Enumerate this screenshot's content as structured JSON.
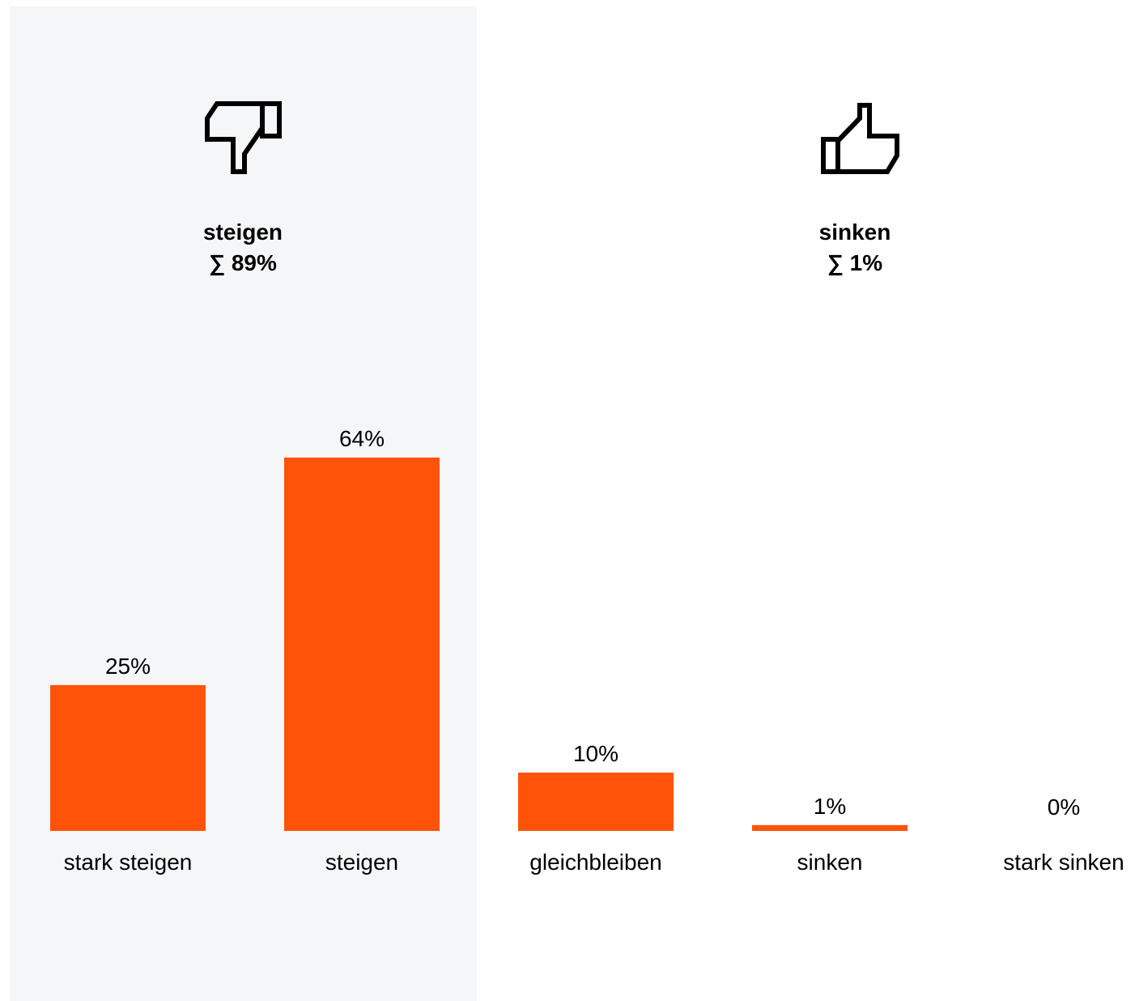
{
  "chart_data": {
    "type": "bar",
    "categories": [
      "stark steigen",
      "steigen",
      "gleichbleiben",
      "sinken",
      "stark sinken"
    ],
    "values": [
      25,
      64,
      10,
      1,
      0
    ],
    "value_labels": [
      "25%",
      "64%",
      "10%",
      "1%",
      "0%"
    ],
    "ylim": [
      0,
      64
    ],
    "unit": "%",
    "bar_color": "#FF5309",
    "highlight_background": "#F5F6F8",
    "groups": [
      {
        "label": "steigen",
        "sum": "∑ 89%",
        "icon": "thumbs-down-icon"
      },
      {
        "label": "sinken",
        "sum": "∑ 1%",
        "icon": "thumbs-up-icon"
      }
    ]
  }
}
